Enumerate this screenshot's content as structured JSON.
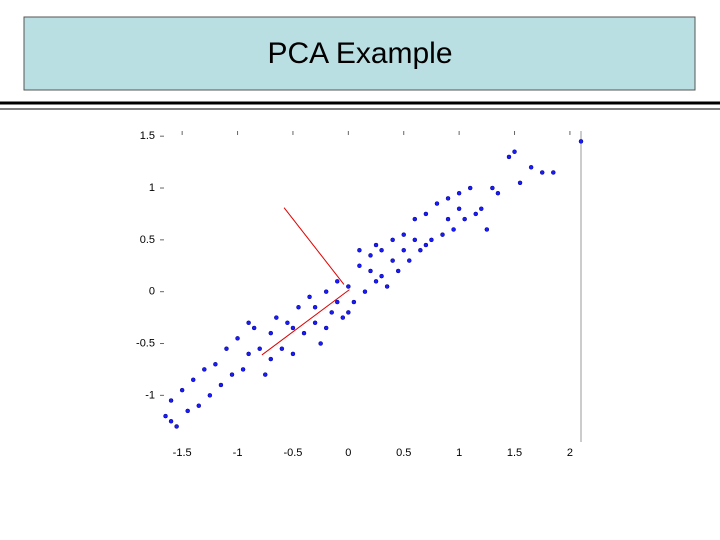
{
  "chart_data": {
    "type": "scatter",
    "title": "PCA Example",
    "color": "#1a1aff",
    "x": [
      -1.65,
      -1.6,
      -1.55,
      -1.5,
      -1.45,
      -1.4,
      -1.35,
      -1.3,
      -1.25,
      -1.2,
      -1.15,
      -1.1,
      -1.05,
      -1.0,
      -0.95,
      -0.9,
      -0.85,
      -0.8,
      -0.75,
      -0.7,
      -0.65,
      -0.6,
      -0.55,
      -0.5,
      -0.45,
      -0.4,
      -0.35,
      -0.3,
      -0.25,
      -0.2,
      -0.15,
      -0.1,
      -0.05,
      0.0,
      0.05,
      0.1,
      0.15,
      0.2,
      0.25,
      0.3,
      0.35,
      0.4,
      0.45,
      0.5,
      0.55,
      0.6,
      0.65,
      0.7,
      0.75,
      0.8,
      0.85,
      0.9,
      0.95,
      1.0,
      1.05,
      1.1,
      1.15,
      1.2,
      1.25,
      1.3,
      1.35,
      1.45,
      1.5,
      1.55,
      1.65,
      1.75,
      1.85,
      2.1,
      -0.7,
      -0.9,
      0.2,
      0.3,
      0.0,
      -0.1,
      0.4,
      0.5,
      0.6,
      -0.3,
      -0.5,
      0.1,
      0.7,
      0.9,
      1.0,
      -0.2,
      0.25,
      -1.6
    ],
    "y": [
      -1.2,
      -1.05,
      -1.3,
      -0.95,
      -1.15,
      -0.85,
      -1.1,
      -0.75,
      -1.0,
      -0.7,
      -0.9,
      -0.55,
      -0.8,
      -0.45,
      -0.75,
      -0.6,
      -0.35,
      -0.55,
      -0.8,
      -0.4,
      -0.25,
      -0.55,
      -0.3,
      -0.6,
      -0.15,
      -0.4,
      -0.05,
      -0.3,
      -0.5,
      0.0,
      -0.2,
      0.1,
      -0.25,
      0.05,
      -0.1,
      0.25,
      0.0,
      0.35,
      0.1,
      0.4,
      0.05,
      0.5,
      0.2,
      0.55,
      0.3,
      0.7,
      0.4,
      0.75,
      0.5,
      0.85,
      0.55,
      0.9,
      0.6,
      0.95,
      0.7,
      1.0,
      0.75,
      0.8,
      0.6,
      1.0,
      0.95,
      1.3,
      1.35,
      1.05,
      1.2,
      1.15,
      1.15,
      1.45,
      -0.65,
      -0.3,
      0.2,
      0.15,
      -0.2,
      -0.1,
      0.3,
      0.4,
      0.5,
      -0.15,
      -0.35,
      0.4,
      0.45,
      0.7,
      0.8,
      -0.35,
      0.45,
      -1.25
    ],
    "vectors": [
      {
        "color": "#e00000",
        "x": [
          -0.78,
          0.01
        ],
        "y": [
          -0.61,
          0.02
        ]
      },
      {
        "color": "#e00000",
        "x": [
          -0.58,
          -0.04
        ],
        "y": [
          0.81,
          0.07
        ]
      }
    ],
    "xlim": [
      -1.7,
      2.1
    ],
    "ylim": [
      -1.45,
      1.55
    ],
    "xticks": [
      -1.5,
      -1,
      -0.5,
      0,
      0.5,
      1,
      1.5,
      2
    ],
    "yticks": [
      -1,
      -0.5,
      0,
      0.5,
      1,
      1.5
    ]
  }
}
